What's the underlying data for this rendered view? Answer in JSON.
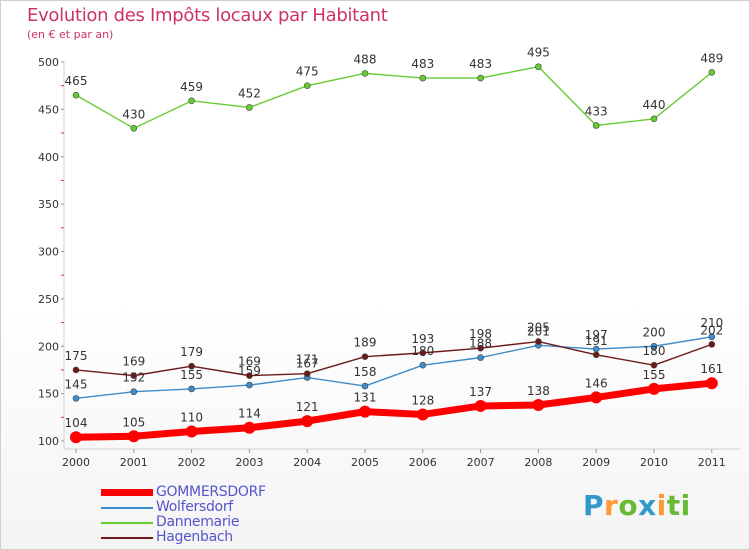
{
  "header": {
    "title": "Evolution des Impôts locaux par Habitant",
    "subtitle": "(en € et par an)"
  },
  "brand": {
    "letters": [
      "P",
      "r",
      "o",
      "x",
      "i",
      "t",
      "i"
    ],
    "colors": [
      "#3399cc",
      "#ff9933",
      "#66bb33",
      "#3399cc",
      "#ff9933",
      "#66bb33",
      "#66bb33"
    ]
  },
  "chart_data": {
    "type": "line",
    "title": "Evolution des Impôts locaux par Habitant",
    "subtitle": "(en € et par an)",
    "xlabel": "",
    "ylabel": "",
    "x": [
      "2000",
      "2001",
      "2002",
      "2003",
      "2004",
      "2005",
      "2006",
      "2007",
      "2008",
      "2009",
      "2010",
      "2011"
    ],
    "ylim": [
      100,
      500
    ],
    "yticks": [
      "100",
      "150",
      "200",
      "250",
      "300",
      "350",
      "400",
      "450",
      "500"
    ],
    "grid": false,
    "legend_position": "bottom-left",
    "series": [
      {
        "name": "GOMMERSDORF",
        "color": "#ff0000",
        "label_color": "#ff0000",
        "values": [
          104,
          105,
          110,
          114,
          121,
          131,
          128,
          137,
          138,
          146,
          155,
          161
        ]
      },
      {
        "name": "Wolfersdorf",
        "color": "#3d8ccc",
        "label_color": "#3d8ccc",
        "values": [
          145,
          152,
          155,
          159,
          167,
          158,
          180,
          188,
          201,
          197,
          200,
          210
        ]
      },
      {
        "name": "Dannemarie",
        "color": "#66cc33",
        "label_color": "#66cc33",
        "values": [
          465,
          430,
          459,
          452,
          475,
          488,
          483,
          483,
          495,
          433,
          440,
          489
        ]
      },
      {
        "name": "Hagenbach",
        "color": "#6b1a1a",
        "label_color": "#6b1a1a",
        "values": [
          175,
          169,
          179,
          169,
          171,
          189,
          193,
          198,
          205,
          191,
          180,
          202
        ]
      }
    ]
  }
}
